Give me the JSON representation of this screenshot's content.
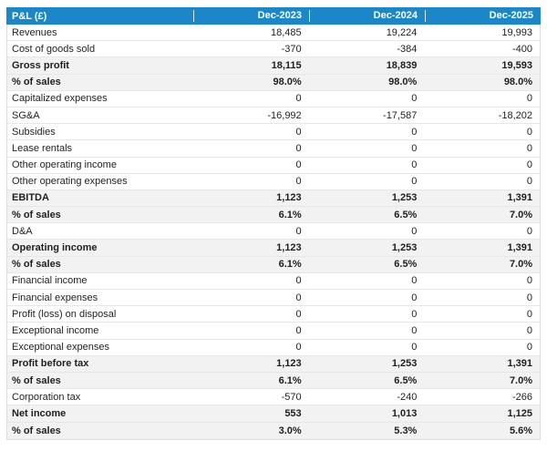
{
  "colors": {
    "header_bg": "#1b86c8",
    "row_alt_bg": "#f2f2f2",
    "border": "#e7e7e7"
  },
  "header": {
    "label_col": "P&L (£)",
    "columns": [
      "Dec-2023",
      "Dec-2024",
      "Dec-2025"
    ]
  },
  "rows": [
    {
      "label": "Revenues",
      "values": [
        "18,485",
        "19,224",
        "19,993"
      ],
      "bold": false
    },
    {
      "label": "Cost of goods sold",
      "values": [
        "-370",
        "-384",
        "-400"
      ],
      "bold": false
    },
    {
      "label": "Gross profit",
      "values": [
        "18,115",
        "18,839",
        "19,593"
      ],
      "bold": true
    },
    {
      "label": "% of sales",
      "values": [
        "98.0%",
        "98.0%",
        "98.0%"
      ],
      "bold": true
    },
    {
      "label": "Capitalized expenses",
      "values": [
        "0",
        "0",
        "0"
      ],
      "bold": false
    },
    {
      "label": "SG&A",
      "values": [
        "-16,992",
        "-17,587",
        "-18,202"
      ],
      "bold": false
    },
    {
      "label": "Subsidies",
      "values": [
        "0",
        "0",
        "0"
      ],
      "bold": false
    },
    {
      "label": "Lease rentals",
      "values": [
        "0",
        "0",
        "0"
      ],
      "bold": false
    },
    {
      "label": "Other operating income",
      "values": [
        "0",
        "0",
        "0"
      ],
      "bold": false
    },
    {
      "label": "Other operating expenses",
      "values": [
        "0",
        "0",
        "0"
      ],
      "bold": false
    },
    {
      "label": "EBITDA",
      "values": [
        "1,123",
        "1,253",
        "1,391"
      ],
      "bold": true
    },
    {
      "label": "% of sales",
      "values": [
        "6.1%",
        "6.5%",
        "7.0%"
      ],
      "bold": true
    },
    {
      "label": "D&A",
      "values": [
        "0",
        "0",
        "0"
      ],
      "bold": false
    },
    {
      "label": "Operating income",
      "values": [
        "1,123",
        "1,253",
        "1,391"
      ],
      "bold": true
    },
    {
      "label": "% of sales",
      "values": [
        "6.1%",
        "6.5%",
        "7.0%"
      ],
      "bold": true
    },
    {
      "label": "Financial income",
      "values": [
        "0",
        "0",
        "0"
      ],
      "bold": false
    },
    {
      "label": "Financial expenses",
      "values": [
        "0",
        "0",
        "0"
      ],
      "bold": false
    },
    {
      "label": "Profit (loss) on disposal",
      "values": [
        "0",
        "0",
        "0"
      ],
      "bold": false
    },
    {
      "label": "Exceptional income",
      "values": [
        "0",
        "0",
        "0"
      ],
      "bold": false
    },
    {
      "label": "Exceptional expenses",
      "values": [
        "0",
        "0",
        "0"
      ],
      "bold": false
    },
    {
      "label": "Profit before tax",
      "values": [
        "1,123",
        "1,253",
        "1,391"
      ],
      "bold": true
    },
    {
      "label": "% of sales",
      "values": [
        "6.1%",
        "6.5%",
        "7.0%"
      ],
      "bold": true
    },
    {
      "label": "Corporation tax",
      "values": [
        "-570",
        "-240",
        "-266"
      ],
      "bold": false
    },
    {
      "label": "Net income",
      "values": [
        "553",
        "1,013",
        "1,125"
      ],
      "bold": true
    },
    {
      "label": "% of sales",
      "values": [
        "3.0%",
        "5.3%",
        "5.6%"
      ],
      "bold": true
    }
  ]
}
